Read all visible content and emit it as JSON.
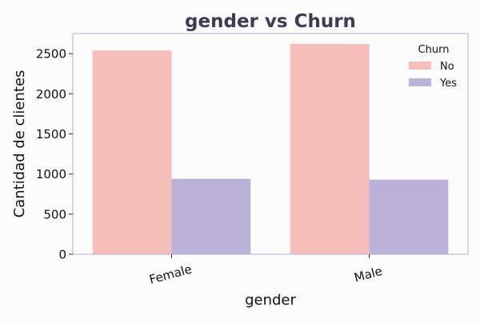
{
  "chart_data": {
    "type": "bar",
    "title": "gender vs Churn",
    "xlabel": "gender",
    "ylabel": "Cantidad de clientes",
    "categories": [
      "Female",
      "Male"
    ],
    "series": [
      {
        "name": "No",
        "values": [
          2540,
          2620
        ]
      },
      {
        "name": "Yes",
        "values": [
          940,
          930
        ]
      }
    ],
    "ylim": [
      0,
      2750
    ],
    "yticks": [
      0,
      500,
      1000,
      1500,
      2000,
      2500
    ],
    "legend": {
      "title": "Churn",
      "position": "top-right",
      "items": [
        "No",
        "Yes"
      ]
    },
    "grid": false
  },
  "colors": {
    "series": [
      "#f5bebb",
      "#bbb3d7"
    ],
    "title": "#3c3c55",
    "frame": "#b4aedc",
    "text": "#111111",
    "background": "#fbfbfb"
  }
}
